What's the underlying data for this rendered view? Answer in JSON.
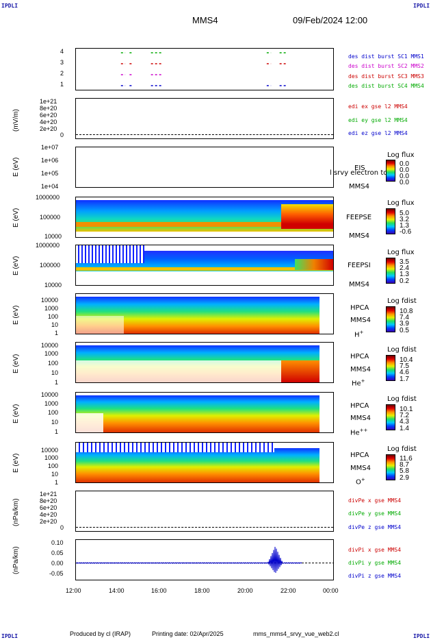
{
  "header": {
    "corner_tl": "IPDLI",
    "corner_tr": "IPDLI",
    "corner_bl": "IPDLI",
    "corner_br": "IPDLI",
    "spacecraft": "MMS4",
    "date": "09/Feb/2024 12:00"
  },
  "footer": {
    "produced": "Produced by cl (IRAP)",
    "printing": "Printing date: 02/Apr/2025",
    "file": "mms_mms4_srvy_vue_web2.cl"
  },
  "time_axis": [
    "12:00",
    "14:00",
    "16:00",
    "18:00",
    "20:00",
    "22:00",
    "00:00"
  ],
  "panels": {
    "burst": {
      "yticks": [
        "4",
        "3",
        "2",
        "1"
      ],
      "legend": [
        "des dist burst SC1 MMS1",
        "des dist burst SC2 MMS2",
        "des dist burst SC3 MMS3",
        "des dist burst SC4 MMS4"
      ],
      "colors": [
        "#0000cc",
        "#cc00cc",
        "#cc0000",
        "#00aa00"
      ]
    },
    "edi": {
      "ylabel": "(mV/m)",
      "yticks": [
        "1e+21",
        "8e+20",
        "6e+20",
        "4e+20",
        "2e+20",
        "0"
      ],
      "legend": [
        "edi ex gse l2 MMS4",
        "edi ey gse l2 MMS4",
        "edi ez gse l2 MMS4"
      ],
      "colors": [
        "#cc0000",
        "#00aa00",
        "#0000cc"
      ]
    },
    "eis": {
      "ylabel": "E (eV)",
      "yticks": [
        "1e+07",
        "1e+06",
        "1e+05",
        "1e+04"
      ],
      "name": "EIS",
      "sc": "MMS4",
      "overlay": "l srvy electron to",
      "cbar_title": "Log flux",
      "cbar_vals": [
        "0.0",
        "0.0",
        "0.0",
        "0.0"
      ]
    },
    "feepse": {
      "ylabel": "E (eV)",
      "yticks": [
        "1000000",
        "100000",
        "10000"
      ],
      "name": "FEEPSE",
      "sc": "MMS4",
      "cbar_title": "Log flux",
      "cbar_vals": [
        "5.0",
        "3.2",
        "1.3",
        "-0.6"
      ]
    },
    "feepsi": {
      "ylabel": "E (eV)",
      "yticks": [
        "1000000",
        "100000",
        "10000"
      ],
      "name": "FEEPSI",
      "sc": "MMS4",
      "cbar_title": "Log flux",
      "cbar_vals": [
        "3.5",
        "2.4",
        "1.3",
        "0.2"
      ]
    },
    "hpca_h": {
      "ylabel": "E (eV)",
      "yticks": [
        "10000",
        "1000",
        "100",
        "10",
        "1"
      ],
      "name": "HPCA",
      "sc": "MMS4",
      "species": "H",
      "charge": "+",
      "cbar_title": "Log fdist",
      "cbar_vals": [
        "10.8",
        "7.4",
        "3.9",
        "0.5"
      ]
    },
    "hpca_he": {
      "ylabel": "E (eV)",
      "yticks": [
        "10000",
        "1000",
        "100",
        "10",
        "1"
      ],
      "name": "HPCA",
      "sc": "MMS4",
      "species": "He",
      "charge": "+",
      "cbar_title": "Log fdist",
      "cbar_vals": [
        "10.4",
        "7.5",
        "4.6",
        "1.7"
      ]
    },
    "hpca_hepp": {
      "ylabel": "E (eV)",
      "yticks": [
        "10000",
        "1000",
        "100",
        "10",
        "1"
      ],
      "name": "HPCA",
      "sc": "MMS4",
      "species": "He",
      "charge": "++",
      "cbar_title": "Log fdist",
      "cbar_vals": [
        "10.1",
        "7.2",
        "4.3",
        "1.4"
      ]
    },
    "hpca_o": {
      "ylabel": "E (eV)",
      "yticks": [
        "10000",
        "1000",
        "100",
        "10",
        "1"
      ],
      "name": "HPCA",
      "sc": "MMS4",
      "species": "O",
      "charge": "+",
      "cbar_title": "Log fdist",
      "cbar_vals": [
        "11.6",
        "8.7",
        "5.8",
        "2.9"
      ]
    },
    "divpe": {
      "ylabel": "(nPa/km)",
      "yticks": [
        "1e+21",
        "8e+20",
        "6e+20",
        "4e+20",
        "2e+20",
        "0"
      ],
      "legend": [
        "divPe x gse MMS4",
        "divPe y gse MMS4",
        "divPe z gse MMS4"
      ],
      "colors": [
        "#cc0000",
        "#00aa00",
        "#0000cc"
      ]
    },
    "divpi": {
      "ylabel": "(nPa/km)",
      "yticks": [
        "0.10",
        "0.05",
        "0.00",
        "-0.05"
      ],
      "legend": [
        "divPi x gse MMS4",
        "divPi y gse MMS4",
        "divPi z gse MMS4"
      ],
      "colors": [
        "#cc0000",
        "#00aa00",
        "#0000cc"
      ]
    }
  },
  "chart_data": {
    "type": "heatmap",
    "burst_intervals_hours": [
      {
        "sc": 4,
        "color": "#00aa00",
        "segments": [
          [
            14.1,
            14.3
          ],
          [
            14.5,
            14.6
          ],
          [
            15.5,
            16.0
          ],
          [
            20.9,
            21.1
          ],
          [
            21.5,
            21.8
          ]
        ]
      },
      {
        "sc": 3,
        "color": "#cc0000",
        "segments": [
          [
            14.1,
            14.3
          ],
          [
            14.5,
            14.6
          ],
          [
            15.5,
            16.0
          ],
          [
            20.9,
            21.1
          ],
          [
            21.5,
            21.8
          ]
        ]
      },
      {
        "sc": 2,
        "color": "#cc00cc",
        "segments": [
          [
            14.1,
            14.3
          ],
          [
            14.5,
            14.6
          ],
          [
            15.5,
            16.0
          ]
        ]
      },
      {
        "sc": 1,
        "color": "#0000cc",
        "segments": [
          [
            14.1,
            14.3
          ],
          [
            14.5,
            14.6
          ],
          [
            15.5,
            16.0
          ],
          [
            20.9,
            21.1
          ],
          [
            21.5,
            21.8
          ]
        ]
      }
    ],
    "divpi_spike": {
      "time_hours": 21.3,
      "max": 0.08,
      "min": -0.05
    },
    "xlim_hours": [
      12,
      24
    ]
  }
}
